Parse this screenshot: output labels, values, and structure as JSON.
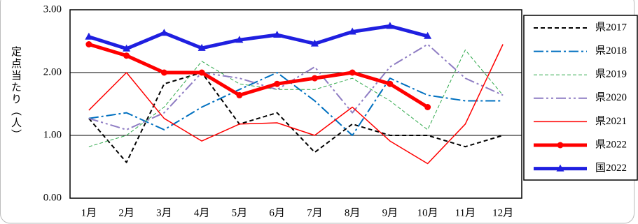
{
  "chart_data": {
    "type": "line",
    "y_label": "定点当たり（人）",
    "categories": [
      "1月",
      "2月",
      "3月",
      "4月",
      "5月",
      "6月",
      "7月",
      "8月",
      "9月",
      "10月",
      "11月",
      "12月"
    ],
    "ylim": [
      0,
      3
    ],
    "yticks": [
      {
        "value": 0,
        "label": "0.00"
      },
      {
        "value": 1,
        "label": "1.00"
      },
      {
        "value": 2,
        "label": "2.00"
      },
      {
        "value": 3,
        "label": "3.00"
      }
    ],
    "grid": true,
    "legend": "right",
    "series": [
      {
        "name": "県2017",
        "color": "#000000",
        "dash": "6,4",
        "width": 2,
        "values": [
          1.27,
          0.57,
          1.82,
          2.0,
          1.18,
          1.36,
          0.73,
          1.18,
          1.0,
          1.0,
          0.82,
          1.0
        ]
      },
      {
        "name": "県2018",
        "color": "#0070c0",
        "dash": "14,4,3,4",
        "width": 2,
        "values": [
          1.27,
          1.36,
          1.09,
          1.45,
          1.73,
          2.0,
          1.55,
          1.0,
          1.91,
          1.64,
          1.55,
          1.55
        ]
      },
      {
        "name": "県2019",
        "color": "#2ea84a",
        "dash": "5,3",
        "width": 1,
        "values": [
          0.82,
          1.0,
          1.45,
          2.18,
          1.82,
          1.73,
          1.73,
          1.91,
          1.55,
          1.09,
          2.36,
          1.64
        ]
      },
      {
        "name": "県2020",
        "color": "#8e7cc3",
        "dash": "14,4,3,4,3,4",
        "width": 2,
        "values": [
          1.27,
          1.09,
          1.36,
          2.0,
          1.91,
          1.73,
          2.09,
          1.36,
          2.09,
          2.45,
          1.91,
          1.64
        ]
      },
      {
        "name": "県2021",
        "color": "#ff0000",
        "dash": "none",
        "width": 1.5,
        "values": [
          1.4,
          2.0,
          1.27,
          0.91,
          1.18,
          1.2,
          1.0,
          1.45,
          0.91,
          0.55,
          1.18,
          2.45
        ]
      },
      {
        "name": "県2022",
        "color": "#ff0000",
        "dash": "none",
        "width": 5,
        "marker": "circle",
        "values": [
          2.45,
          2.27,
          2.0,
          2.0,
          1.64,
          1.82,
          1.91,
          2.0,
          1.82,
          1.45,
          null,
          null
        ]
      },
      {
        "name": "国2022",
        "color": "#1f1fe0",
        "dash": "none",
        "width": 5,
        "marker": "triangle",
        "values": [
          2.57,
          2.38,
          2.63,
          2.39,
          2.52,
          2.6,
          2.46,
          2.65,
          2.74,
          2.58,
          null,
          null
        ]
      }
    ]
  }
}
